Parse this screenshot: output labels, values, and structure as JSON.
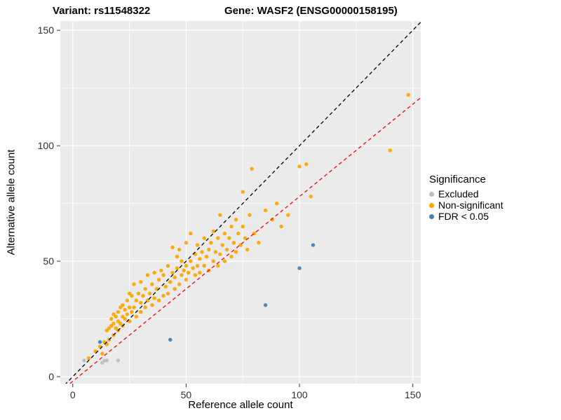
{
  "header": {
    "variant_title": "Variant: rs11548322",
    "gene_title": "Gene: WASF2 (ENSG00000158195)"
  },
  "chart_data": {
    "type": "scatter",
    "xlabel": "Reference allele count",
    "ylabel": "Alternative allele count",
    "xlim": [
      -5.5,
      153.5
    ],
    "ylim": [
      -3,
      154
    ],
    "xticks": [
      0,
      50,
      100,
      150
    ],
    "yticks": [
      0,
      50,
      100,
      150
    ],
    "x_minor": [
      25,
      75,
      125
    ],
    "y_minor": [
      25,
      75,
      125
    ],
    "panel_bg": "#EBEBEB",
    "grid_color": "#FFFFFF",
    "tick_color": "#333333",
    "tick_label_color": "#303030",
    "legend": {
      "title": "Significance",
      "items": [
        {
          "label": "Excluded",
          "color": "#BEBEBE"
        },
        {
          "label": "Non-significant",
          "color": "#FFA500"
        },
        {
          "label": "FDR < 0.05",
          "color": "#4682B4"
        }
      ]
    },
    "lines": [
      {
        "name": "identity-line",
        "slope": 1,
        "intercept": 0,
        "color": "#000000",
        "dash": "5,4"
      },
      {
        "name": "fit-line",
        "slope": 0.8,
        "intercept": -2,
        "color": "#FF0000",
        "dash": "5,4"
      }
    ],
    "series": [
      {
        "name": "Excluded",
        "color": "#BEBEBE",
        "points": [
          [
            5,
            7
          ],
          [
            13,
            6
          ],
          [
            14,
            7
          ],
          [
            15,
            7
          ],
          [
            20,
            7
          ]
        ]
      },
      {
        "name": "Non-significant",
        "color": "#FFA500",
        "points": [
          [
            7,
            8
          ],
          [
            10,
            11
          ],
          [
            12,
            13
          ],
          [
            13,
            10
          ],
          [
            14,
            15
          ],
          [
            15,
            14
          ],
          [
            15,
            20
          ],
          [
            16,
            16
          ],
          [
            16,
            21
          ],
          [
            17,
            22
          ],
          [
            17,
            25
          ],
          [
            18,
            18
          ],
          [
            18,
            23
          ],
          [
            18,
            27
          ],
          [
            19,
            21
          ],
          [
            19,
            26
          ],
          [
            20,
            20
          ],
          [
            20,
            24
          ],
          [
            20,
            28
          ],
          [
            21,
            23
          ],
          [
            21,
            30
          ],
          [
            22,
            22
          ],
          [
            22,
            26
          ],
          [
            22,
            31
          ],
          [
            23,
            25
          ],
          [
            23,
            29
          ],
          [
            24,
            27
          ],
          [
            24,
            33
          ],
          [
            25,
            24
          ],
          [
            25,
            30
          ],
          [
            25,
            36
          ],
          [
            26,
            28
          ],
          [
            26,
            35
          ],
          [
            27,
            30
          ],
          [
            27,
            40
          ],
          [
            28,
            26
          ],
          [
            28,
            33
          ],
          [
            29,
            36
          ],
          [
            30,
            28
          ],
          [
            30,
            32
          ],
          [
            30,
            41
          ],
          [
            31,
            35
          ],
          [
            32,
            30
          ],
          [
            32,
            38
          ],
          [
            33,
            33
          ],
          [
            33,
            44
          ],
          [
            34,
            36
          ],
          [
            35,
            31
          ],
          [
            35,
            40
          ],
          [
            36,
            34
          ],
          [
            36,
            45
          ],
          [
            37,
            38
          ],
          [
            38,
            33
          ],
          [
            38,
            42
          ],
          [
            39,
            46
          ],
          [
            40,
            35
          ],
          [
            40,
            44
          ],
          [
            41,
            39
          ],
          [
            42,
            36
          ],
          [
            42,
            48
          ],
          [
            43,
            41
          ],
          [
            44,
            45
          ],
          [
            44,
            56
          ],
          [
            45,
            38
          ],
          [
            45,
            43
          ],
          [
            46,
            47
          ],
          [
            46,
            52
          ],
          [
            47,
            40
          ],
          [
            47,
            55
          ],
          [
            48,
            44
          ],
          [
            48,
            50
          ],
          [
            49,
            46
          ],
          [
            50,
            42
          ],
          [
            50,
            48
          ],
          [
            50,
            58
          ],
          [
            51,
            45
          ],
          [
            52,
            50
          ],
          [
            52,
            62
          ],
          [
            53,
            47
          ],
          [
            54,
            44
          ],
          [
            54,
            53
          ],
          [
            55,
            48
          ],
          [
            55,
            57
          ],
          [
            56,
            45
          ],
          [
            56,
            51
          ],
          [
            57,
            54
          ],
          [
            58,
            48
          ],
          [
            58,
            60
          ],
          [
            59,
            52
          ],
          [
            60,
            46
          ],
          [
            60,
            55
          ],
          [
            61,
            58
          ],
          [
            62,
            50
          ],
          [
            62,
            63
          ],
          [
            63,
            54
          ],
          [
            64,
            48
          ],
          [
            64,
            60
          ],
          [
            65,
            53
          ],
          [
            65,
            70
          ],
          [
            66,
            57
          ],
          [
            67,
            50
          ],
          [
            67,
            62
          ],
          [
            68,
            55
          ],
          [
            69,
            60
          ],
          [
            70,
            52
          ],
          [
            70,
            65
          ],
          [
            71,
            58
          ],
          [
            72,
            54
          ],
          [
            72,
            68
          ],
          [
            73,
            62
          ],
          [
            74,
            57
          ],
          [
            75,
            65
          ],
          [
            75,
            80
          ],
          [
            76,
            60
          ],
          [
            77,
            55
          ],
          [
            78,
            70
          ],
          [
            79,
            90
          ],
          [
            80,
            62
          ],
          [
            82,
            58
          ],
          [
            85,
            72
          ],
          [
            88,
            68
          ],
          [
            90,
            75
          ],
          [
            92,
            65
          ],
          [
            95,
            70
          ],
          [
            100,
            91
          ],
          [
            103,
            92
          ],
          [
            105,
            78
          ],
          [
            140,
            98
          ],
          [
            148,
            122
          ]
        ]
      },
      {
        "name": "FDR < 0.05",
        "color": "#4682B4",
        "points": [
          [
            12,
            15
          ],
          [
            43,
            16
          ],
          [
            85,
            31
          ],
          [
            100,
            47
          ],
          [
            106,
            57
          ]
        ]
      }
    ]
  }
}
